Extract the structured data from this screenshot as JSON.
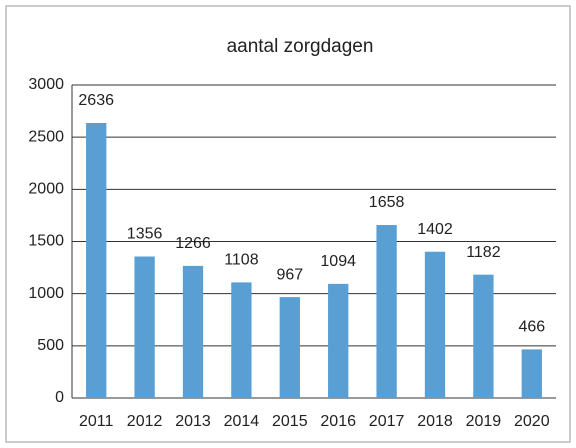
{
  "chart_data": {
    "type": "bar",
    "title": "aantal zorgdagen",
    "categories": [
      "2011",
      "2012",
      "2013",
      "2014",
      "2015",
      "2016",
      "2017",
      "2018",
      "2019",
      "2020"
    ],
    "values": [
      2636,
      1356,
      1266,
      1108,
      967,
      1094,
      1658,
      1402,
      1182,
      466
    ],
    "color": "#5a9fd4",
    "ylim": [
      0,
      3000
    ],
    "yticks": [
      0,
      500,
      1000,
      1500,
      2000,
      2500,
      3000
    ],
    "grid": true
  }
}
